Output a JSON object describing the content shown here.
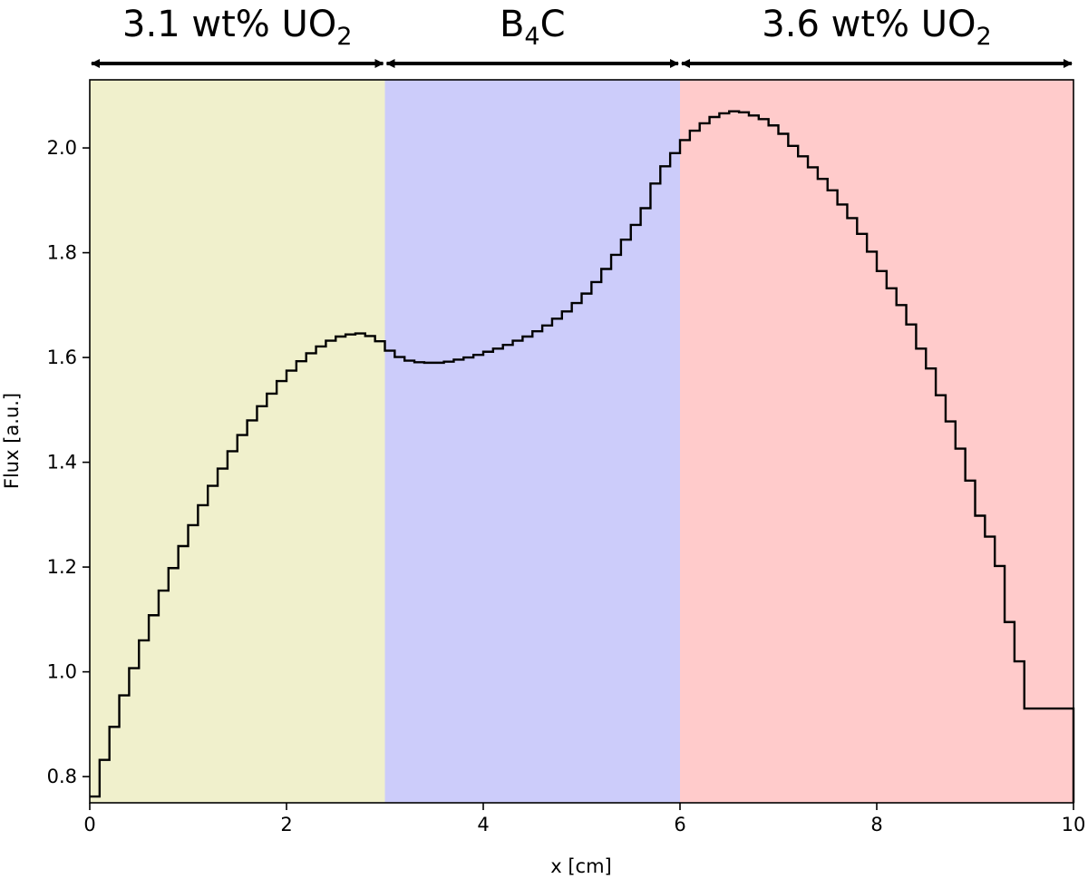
{
  "chart_data": {
    "type": "line",
    "style": "step",
    "xlabel": "x [cm]",
    "ylabel": "Flux [a.u.]",
    "xlim": [
      0,
      10
    ],
    "ylim": [
      0.75,
      2.13
    ],
    "xticks": [
      0,
      2,
      4,
      6,
      8,
      10
    ],
    "xtick_labels": [
      "0",
      "2",
      "4",
      "6",
      "8",
      "10"
    ],
    "yticks": [
      0.8,
      1.0,
      1.2,
      1.4,
      1.6,
      1.8,
      2.0
    ],
    "ytick_labels": [
      "0.8",
      "1.0",
      "1.2",
      "1.4",
      "1.6",
      "1.8",
      "2.0"
    ],
    "grid": false,
    "regions": [
      {
        "label_main": "3.1 wt% UO",
        "label_sub": "2",
        "label_tail": "",
        "from": 0,
        "to": 3,
        "color": "#f0f0cc"
      },
      {
        "label_main": "B",
        "label_sub": "4",
        "label_tail": "C",
        "from": 3,
        "to": 6,
        "color": "#ccccfa"
      },
      {
        "label_main": "3.6 wt% UO",
        "label_sub": "2",
        "label_tail": "",
        "from": 6,
        "to": 10,
        "color": "#ffcbcb"
      }
    ],
    "series": [
      {
        "bin_width": 0.1,
        "x": [
          0.0,
          0.1,
          0.2,
          0.3,
          0.4,
          0.5,
          0.6,
          0.7,
          0.8,
          0.9,
          1.0,
          1.1,
          1.2,
          1.3,
          1.4,
          1.5,
          1.6,
          1.7,
          1.8,
          1.9,
          2.0,
          2.1,
          2.2,
          2.3,
          2.4,
          2.5,
          2.6,
          2.7,
          2.8,
          2.9,
          3.0,
          3.1,
          3.2,
          3.3,
          3.4,
          3.5,
          3.6,
          3.7,
          3.8,
          3.9,
          4.0,
          4.1,
          4.2,
          4.3,
          4.4,
          4.5,
          4.6,
          4.7,
          4.8,
          4.9,
          5.0,
          5.1,
          5.2,
          5.3,
          5.4,
          5.5,
          5.6,
          5.7,
          5.8,
          5.9,
          6.0,
          6.1,
          6.2,
          6.3,
          6.4,
          6.5,
          6.6,
          6.7,
          6.8,
          6.9,
          7.0,
          7.1,
          7.2,
          7.3,
          7.4,
          7.5,
          7.6,
          7.7,
          7.8,
          7.9,
          8.0,
          8.1,
          8.2,
          8.3,
          8.4,
          8.5,
          8.6,
          8.7,
          8.8,
          8.9,
          9.0,
          9.1,
          9.2,
          9.3,
          9.4,
          9.5,
          9.6,
          9.7,
          9.8,
          9.9
        ],
        "y": [
          0.762,
          0.832,
          0.895,
          0.955,
          1.007,
          1.06,
          1.108,
          1.155,
          1.198,
          1.24,
          1.28,
          1.318,
          1.355,
          1.388,
          1.421,
          1.452,
          1.48,
          1.507,
          1.531,
          1.555,
          1.575,
          1.593,
          1.608,
          1.621,
          1.632,
          1.64,
          1.644,
          1.646,
          1.641,
          1.631,
          1.613,
          1.601,
          1.594,
          1.591,
          1.59,
          1.59,
          1.592,
          1.596,
          1.6,
          1.605,
          1.611,
          1.617,
          1.624,
          1.632,
          1.64,
          1.65,
          1.661,
          1.674,
          1.688,
          1.704,
          1.722,
          1.744,
          1.769,
          1.796,
          1.825,
          1.853,
          1.885,
          1.932,
          1.965,
          1.99,
          2.015,
          2.033,
          2.047,
          2.059,
          2.066,
          2.07,
          2.068,
          2.062,
          2.055,
          2.043,
          2.027,
          2.004,
          1.984,
          1.963,
          1.941,
          1.919,
          1.892,
          1.866,
          1.836,
          1.802,
          1.765,
          1.732,
          1.7,
          1.663,
          1.617,
          1.579,
          1.528,
          1.478,
          1.426,
          1.365,
          1.298,
          1.258,
          1.202,
          1.095,
          1.02,
          0.93,
          0.93,
          0.93,
          0.93,
          0.93
        ],
        "color": "#000000"
      }
    ]
  }
}
